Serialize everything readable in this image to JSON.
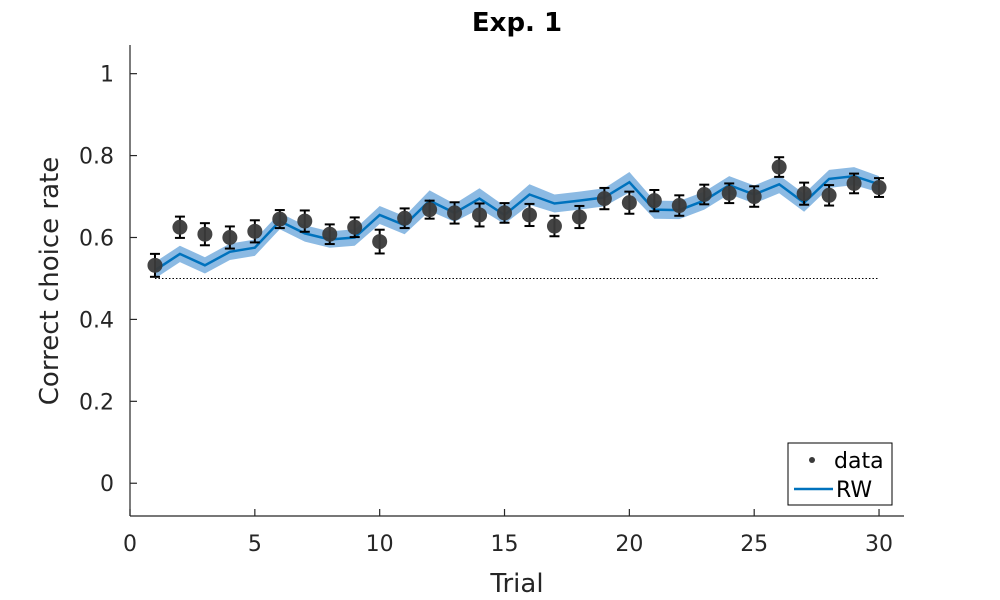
{
  "chart_data": {
    "type": "line",
    "title": "Exp. 1",
    "xlabel": "Trial",
    "ylabel": "Correct choice rate",
    "xlim": [
      0,
      31
    ],
    "ylim": [
      -0.08,
      1.07
    ],
    "xticks": [
      0,
      5,
      10,
      15,
      20,
      25,
      30
    ],
    "yticks": [
      0,
      0.2,
      0.4,
      0.6,
      0.8,
      1
    ],
    "ytick_labels": [
      "0",
      "0.2",
      "0.4",
      "0.6",
      "0.8",
      "1"
    ],
    "grid": false,
    "legend_position": "bottom-right",
    "chance_level": 0.5,
    "x": [
      1,
      2,
      3,
      4,
      5,
      6,
      7,
      8,
      9,
      10,
      11,
      12,
      13,
      14,
      15,
      16,
      17,
      18,
      19,
      20,
      21,
      22,
      23,
      24,
      25,
      26,
      27,
      28,
      29,
      30
    ],
    "series": [
      {
        "name": "data",
        "kind": "points-with-error",
        "color": "#3a3a3a",
        "values": [
          0.532,
          0.625,
          0.608,
          0.6,
          0.615,
          0.645,
          0.64,
          0.608,
          0.625,
          0.59,
          0.647,
          0.668,
          0.66,
          0.655,
          0.66,
          0.655,
          0.628,
          0.65,
          0.695,
          0.685,
          0.69,
          0.678,
          0.705,
          0.708,
          0.7,
          0.772,
          0.707,
          0.703,
          0.732,
          0.722
        ],
        "error": [
          0.028,
          0.026,
          0.027,
          0.027,
          0.027,
          0.022,
          0.026,
          0.024,
          0.024,
          0.029,
          0.024,
          0.022,
          0.026,
          0.028,
          0.024,
          0.027,
          0.025,
          0.027,
          0.026,
          0.027,
          0.026,
          0.025,
          0.024,
          0.024,
          0.025,
          0.024,
          0.027,
          0.025,
          0.024,
          0.023
        ]
      },
      {
        "name": "RW",
        "kind": "line-with-band",
        "color": "#0072bd",
        "band_color": "#6fa9dc",
        "values": [
          0.52,
          0.56,
          0.532,
          0.565,
          0.575,
          0.64,
          0.61,
          0.595,
          0.6,
          0.655,
          0.63,
          0.69,
          0.66,
          0.695,
          0.655,
          0.705,
          0.683,
          0.69,
          0.698,
          0.735,
          0.668,
          0.667,
          0.69,
          0.728,
          0.705,
          0.73,
          0.685,
          0.743,
          0.75,
          0.73
        ],
        "band": [
          0.02,
          0.02,
          0.02,
          0.02,
          0.02,
          0.02,
          0.02,
          0.02,
          0.02,
          0.022,
          0.022,
          0.025,
          0.022,
          0.025,
          0.022,
          0.025,
          0.022,
          0.022,
          0.022,
          0.025,
          0.022,
          0.022,
          0.022,
          0.022,
          0.022,
          0.022,
          0.022,
          0.022,
          0.022,
          0.02
        ]
      }
    ]
  }
}
